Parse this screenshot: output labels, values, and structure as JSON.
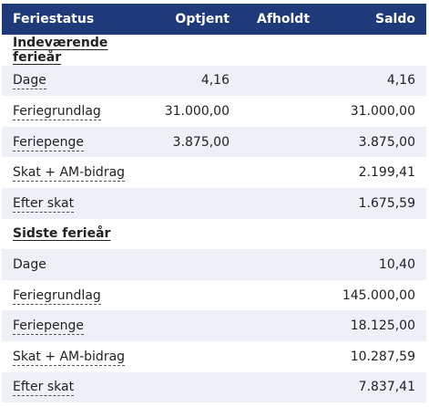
{
  "header": {
    "col1": "Feriestatus",
    "col2": "Optjent",
    "col3": "Afholdt",
    "col4": "Saldo"
  },
  "sections": [
    {
      "title": "Indeværende ferieår",
      "rows": [
        {
          "label": "Dage",
          "optjent": "4,16",
          "afholdt": "",
          "saldo": "4,16"
        },
        {
          "label": "Feriegrundlag",
          "optjent": "31.000,00",
          "afholdt": "",
          "saldo": "31.000,00"
        },
        {
          "label": "Feriepenge",
          "optjent": "3.875,00",
          "afholdt": "",
          "saldo": "3.875,00"
        },
        {
          "label": "Skat + AM-bidrag",
          "optjent": "",
          "afholdt": "",
          "saldo": "2.199,41"
        },
        {
          "label": "Efter skat",
          "optjent": "",
          "afholdt": "",
          "saldo": "1.675,59"
        }
      ]
    },
    {
      "title": "Sidste ferieår",
      "rows": [
        {
          "label": "Dage",
          "optjent": "",
          "afholdt": "",
          "saldo": "10,40"
        },
        {
          "label": "Feriegrundlag",
          "optjent": "",
          "afholdt": "",
          "saldo": "145.000,00"
        },
        {
          "label": "Feriepenge",
          "optjent": "",
          "afholdt": "",
          "saldo": "18.125,00"
        },
        {
          "label": "Skat + AM-bidrag",
          "optjent": "",
          "afholdt": "",
          "saldo": "10.287,59"
        },
        {
          "label": "Efter skat",
          "optjent": "",
          "afholdt": "",
          "saldo": "7.837,41"
        }
      ]
    }
  ],
  "colors": {
    "header_bg": "#1f3a7a",
    "row_shade": "#eef0f8"
  }
}
